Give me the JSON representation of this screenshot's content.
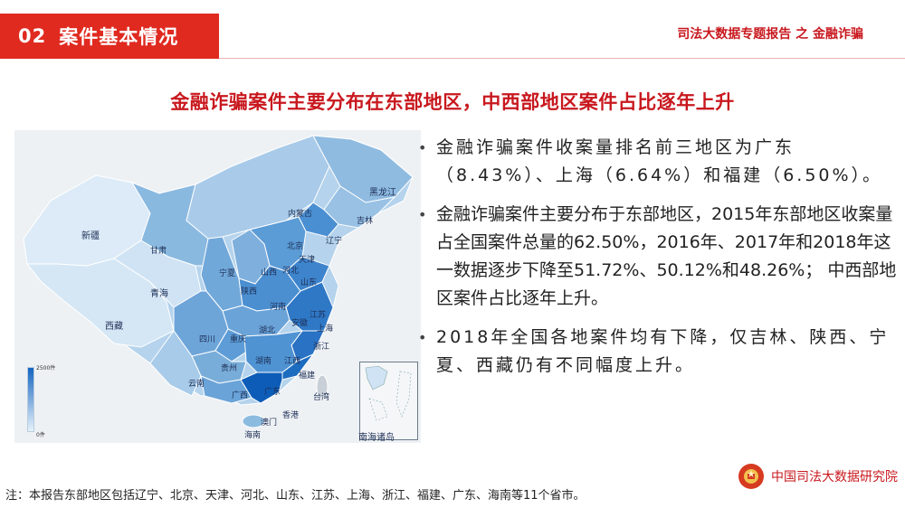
{
  "header": {
    "section_number": "02",
    "section_title": "案件基本情况",
    "report_title": "司法大数据专题报告 之 金融诈骗"
  },
  "headline": "金融诈骗案件主要分布在东部地区，中西部地区案件占比逐年上升",
  "map": {
    "legend_max": "2500件",
    "legend_min": "0件",
    "inset_label": "南海诸岛",
    "provinces": [
      "黑龙江",
      "吉林",
      "内蒙古",
      "辽宁",
      "北京",
      "天津",
      "河北",
      "新疆",
      "甘肃",
      "宁夏",
      "山西",
      "山东",
      "青海",
      "陕西",
      "河南",
      "江苏",
      "安徽",
      "湖北",
      "上海",
      "西藏",
      "四川",
      "重庆",
      "浙江",
      "贵州",
      "湖南",
      "江西",
      "福建",
      "云南",
      "广西",
      "广东",
      "台湾",
      "香港",
      "澳门",
      "海南"
    ]
  },
  "bullets": [
    "金融诈骗案件收案量排名前三地区为广东（8.43%）、上海（6.64%）和福建（6.50%）。",
    "金融诈骗案件主要分布于东部地区，2015年东部地区收案量占全国案件总量的62.50%，2016年、2017年和2018年这一数据逐步下降至51.72%、50.12%和48.26%； 中西部地区案件占比逐年上升。",
    "2018年全国各地案件均有下降，仅吉林、陕西、宁夏、西藏仍有不同幅度上升。"
  ],
  "footnote": "注：本报告东部地区包括辽宁、北京、天津、河北、山东、江苏、上海、浙江、福建、广东、海南等11个省市。",
  "institute": "中国司法大数据研究院",
  "colors": {
    "accent_red": "#e02a20",
    "title_red": "#c8181e",
    "map_dark": "#1565c0",
    "map_light": "#e6f2fb"
  }
}
